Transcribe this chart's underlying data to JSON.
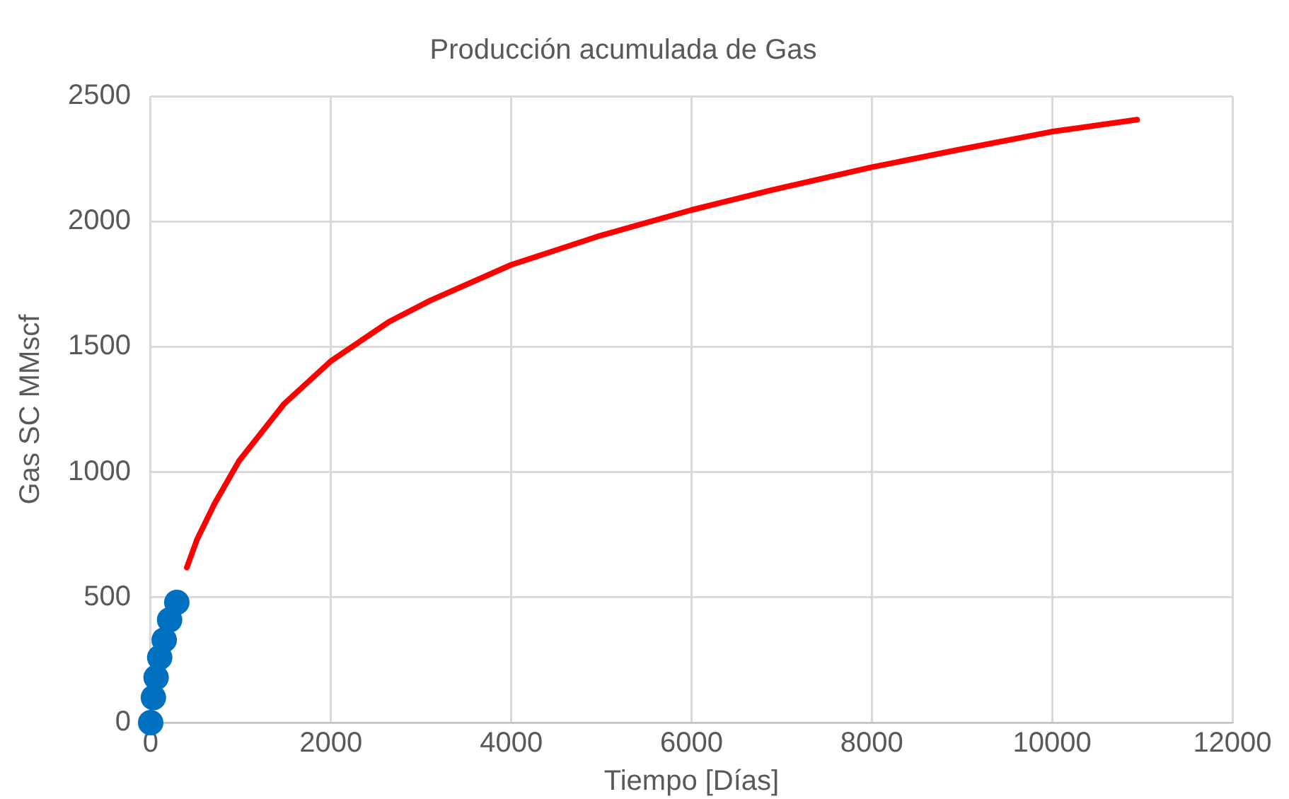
{
  "chart_data": {
    "type": "line",
    "title": "Producción acumulada de Gas",
    "xlabel": "Tiempo [Días]",
    "ylabel": "Gas SC MMscf",
    "xlim": [
      0,
      12000
    ],
    "xticks": [
      0,
      2000,
      4000,
      6000,
      8000,
      10000,
      12000
    ],
    "ylim": [
      0,
      2500
    ],
    "yticks": [
      0,
      500,
      1000,
      1500,
      2000,
      2500
    ],
    "grid": true,
    "legend": false,
    "series": [
      {
        "color": "#ff0000",
        "marker": "none",
        "line_style": "solid",
        "x": [
          401,
          517,
          710,
          981,
          1483,
          2000,
          2641,
          3104,
          4000,
          4958,
          5992,
          6888,
          7992,
          8973,
          9992,
          10942
        ],
        "values": [
          619,
          733,
          875,
          1045,
          1273,
          1443,
          1599,
          1685,
          1827,
          1940,
          2045,
          2125,
          2216,
          2287,
          2358,
          2406
        ]
      },
      {
        "type": "scatter",
        "color": "#0070c0",
        "marker": "circle",
        "x": [
          0,
          30,
          60,
          100,
          150,
          210,
          290
        ],
        "values": [
          0,
          100,
          180,
          260,
          330,
          410,
          480
        ]
      }
    ]
  }
}
